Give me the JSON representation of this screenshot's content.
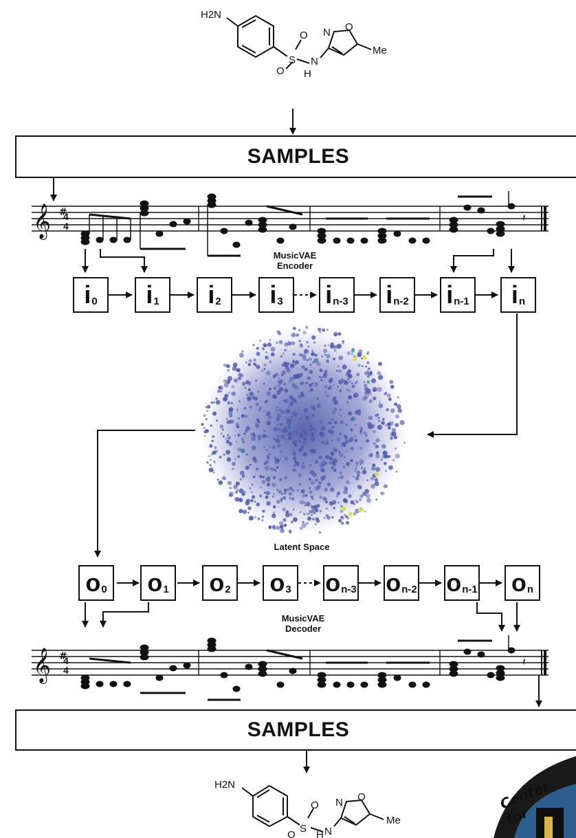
{
  "molecule_top": {
    "labels": [
      "H2N",
      "O",
      "O",
      "S",
      "N",
      "H",
      "N",
      "O",
      "Me"
    ]
  },
  "molecule_bottom": {
    "labels": [
      "H2N",
      "O",
      "O",
      "S",
      "N",
      "H",
      "N",
      "O",
      "Me"
    ]
  },
  "samples_top": "SAMPLES",
  "samples_bottom": "SAMPLES",
  "encoder": {
    "caption_line1": "MusicVAE",
    "caption_line2": "Encoder",
    "nodes": [
      {
        "main": "i",
        "sub": "0"
      },
      {
        "main": "i",
        "sub": "1"
      },
      {
        "main": "i",
        "sub": "2"
      },
      {
        "main": "i",
        "sub": "3"
      },
      {
        "main": "i",
        "sub": "n-3"
      },
      {
        "main": "i",
        "sub": "n-2"
      },
      {
        "main": "i",
        "sub": "n-1"
      },
      {
        "main": "i",
        "sub": "n"
      }
    ]
  },
  "latent": {
    "caption": "Latent Space",
    "colors": {
      "base": "#4f57a8",
      "mid": "#3f6fa0",
      "teal": "#2aa89a",
      "yellow": "#d9e04a"
    }
  },
  "decoder": {
    "caption_line1": "MusicVAE",
    "caption_line2": "Decoder",
    "nodes": [
      {
        "main": "o",
        "sub": "0"
      },
      {
        "main": "o",
        "sub": "1"
      },
      {
        "main": "o",
        "sub": "2"
      },
      {
        "main": "o",
        "sub": "3"
      },
      {
        "main": "o",
        "sub": "n-3"
      },
      {
        "main": "o",
        "sub": "n-2"
      },
      {
        "main": "o",
        "sub": "n-1"
      },
      {
        "main": "o",
        "sub": "n"
      }
    ]
  },
  "corner_badge": {
    "text": "Center for"
  }
}
